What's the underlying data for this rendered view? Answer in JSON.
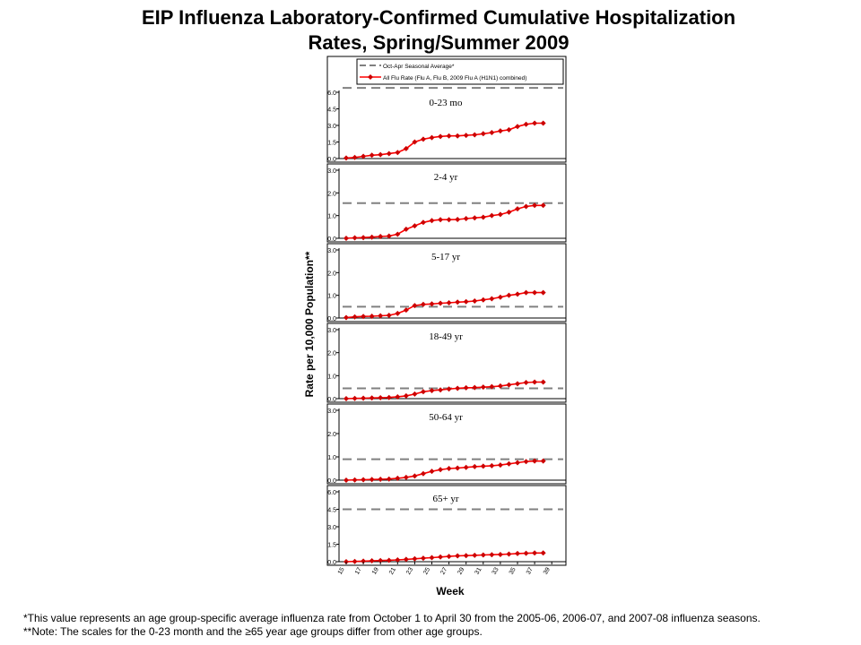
{
  "title": {
    "line1": "EIP Influenza Laboratory-Confirmed Cumulative Hospitalization",
    "line2": "Rates, Spring/Summer 2009"
  },
  "footnotes": [
    "*This value represents an age group-specific average influenza rate from October 1 to April 30 from the 2005-06, 2006-07, and 2007-08 influenza seasons.",
    "**Note: The scales for the 0-23 month and the ≥65 year age groups differ from other age groups."
  ],
  "chart_data": {
    "type": "line",
    "xlabel": "Week",
    "ylabel": "Rate per 10,000 Population**",
    "x_ticks": [
      "15",
      "17",
      "19",
      "21",
      "23",
      "25",
      "27",
      "29",
      "31",
      "33",
      "35",
      "37",
      "39"
    ],
    "x": [
      15,
      16,
      17,
      18,
      19,
      20,
      21,
      22,
      23,
      24,
      25,
      26,
      27,
      28,
      29,
      30,
      31,
      32,
      33,
      34,
      35,
      36,
      37,
      38
    ],
    "legend": {
      "position": "top",
      "entries": [
        "Oct-Apr Seasonal Average*",
        "All Flu Rate (Flu A, Flu B, 2009 Flu A (H1N1) combined)"
      ]
    },
    "colors": {
      "series": "#ff0000",
      "marker": "#cc0000",
      "seasonal_avg": "#808080"
    },
    "panels": [
      {
        "label": "0-23 mo",
        "ylim": [
          0,
          6.0
        ],
        "yticks": [
          "0.0",
          "1.5",
          "3.0",
          "4.5",
          "6.0"
        ],
        "seasonal_avg": 6.4,
        "values": [
          0.05,
          0.1,
          0.2,
          0.3,
          0.35,
          0.45,
          0.55,
          0.9,
          1.5,
          1.75,
          1.9,
          2.0,
          2.05,
          2.05,
          2.1,
          2.15,
          2.25,
          2.35,
          2.5,
          2.6,
          2.9,
          3.1,
          3.2,
          3.2
        ]
      },
      {
        "label": "2-4 yr",
        "ylim": [
          0,
          3.0
        ],
        "yticks": [
          "0.0",
          "1.0",
          "2.0",
          "3.0"
        ],
        "seasonal_avg": 1.55,
        "values": [
          0.0,
          0.02,
          0.03,
          0.05,
          0.08,
          0.1,
          0.18,
          0.4,
          0.55,
          0.7,
          0.78,
          0.82,
          0.82,
          0.83,
          0.87,
          0.9,
          0.93,
          1.0,
          1.05,
          1.15,
          1.3,
          1.4,
          1.45,
          1.45
        ]
      },
      {
        "label": "5-17 yr",
        "ylim": [
          0,
          3.0
        ],
        "yticks": [
          "0.0",
          "1.0",
          "2.0",
          "3.0"
        ],
        "seasonal_avg": 0.5,
        "values": [
          0.02,
          0.05,
          0.07,
          0.08,
          0.1,
          0.12,
          0.2,
          0.35,
          0.55,
          0.6,
          0.62,
          0.65,
          0.67,
          0.7,
          0.72,
          0.75,
          0.8,
          0.85,
          0.92,
          1.0,
          1.05,
          1.12,
          1.12,
          1.12
        ]
      },
      {
        "label": "18-49 yr",
        "ylim": [
          0,
          3.0
        ],
        "yticks": [
          "0.0",
          "1.0",
          "2.0",
          "3.0"
        ],
        "seasonal_avg": 0.45,
        "values": [
          0.0,
          0.01,
          0.02,
          0.03,
          0.04,
          0.05,
          0.08,
          0.12,
          0.2,
          0.3,
          0.35,
          0.38,
          0.42,
          0.45,
          0.47,
          0.48,
          0.5,
          0.52,
          0.55,
          0.6,
          0.65,
          0.7,
          0.72,
          0.72
        ]
      },
      {
        "label": "50-64 yr",
        "ylim": [
          0,
          3.0
        ],
        "yticks": [
          "0.0",
          "1.0",
          "2.0",
          "3.0"
        ],
        "seasonal_avg": 0.9,
        "values": [
          0.0,
          0.01,
          0.02,
          0.03,
          0.04,
          0.05,
          0.08,
          0.12,
          0.18,
          0.28,
          0.38,
          0.45,
          0.5,
          0.52,
          0.55,
          0.58,
          0.6,
          0.62,
          0.65,
          0.7,
          0.75,
          0.8,
          0.82,
          0.82
        ]
      },
      {
        "label": "65+ yr",
        "ylim": [
          0,
          6.0
        ],
        "yticks": [
          "0.0",
          "1.5",
          "3.0",
          "4.5",
          "6.0"
        ],
        "seasonal_avg": 4.5,
        "values": [
          0.0,
          0.02,
          0.05,
          0.08,
          0.1,
          0.12,
          0.15,
          0.2,
          0.25,
          0.3,
          0.35,
          0.4,
          0.45,
          0.5,
          0.52,
          0.55,
          0.58,
          0.6,
          0.62,
          0.65,
          0.7,
          0.72,
          0.75,
          0.75
        ]
      }
    ]
  }
}
